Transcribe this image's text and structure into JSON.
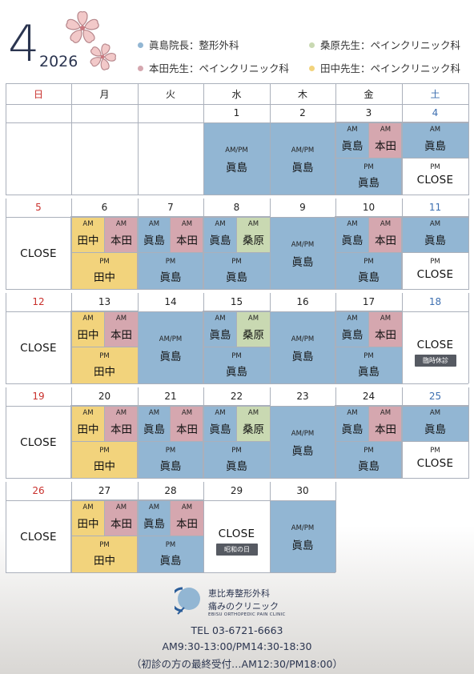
{
  "header": {
    "month": "4",
    "year": "2026",
    "legend": [
      {
        "label": "眞島院長：整形外科",
        "color": "#92b6d3"
      },
      {
        "label": "本田先生：ペインクリニック科",
        "color": "#d5a7af"
      },
      {
        "label": "桑原先生：ペインクリニック科",
        "color": "#c9d9b2"
      },
      {
        "label": "田中先生：ペインクリニック科",
        "color": "#f2d37c"
      }
    ]
  },
  "weekdays": [
    "日",
    "月",
    "火",
    "水",
    "木",
    "金",
    "土"
  ],
  "labels": {
    "am": "AM",
    "pm": "PM",
    "ampm": "AM/PM",
    "close": "CLOSE",
    "majima": "眞島",
    "honda": "本田",
    "kuwahara": "桑原",
    "tanaka": "田中",
    "special_closure": "臨時休診",
    "showa_day": "昭和の日"
  },
  "weeks": [
    {
      "days": [
        "",
        "",
        "",
        "1",
        "2",
        "3",
        "4"
      ]
    },
    {
      "days": [
        "5",
        "6",
        "7",
        "8",
        "9",
        "10",
        "11"
      ]
    },
    {
      "days": [
        "12",
        "13",
        "14",
        "15",
        "16",
        "17",
        "18"
      ]
    },
    {
      "days": [
        "19",
        "20",
        "21",
        "22",
        "23",
        "24",
        "25"
      ]
    },
    {
      "days": [
        "26",
        "27",
        "28",
        "29",
        "30",
        "",
        ""
      ]
    }
  ],
  "footer": {
    "clinic_name": "恵比寿整形外科",
    "clinic_sub": "痛みのクリニック",
    "clinic_en": "EBISU ORTHOPEDIC PAIN CLINIC",
    "tel": "TEL 03-6721-6663",
    "hours": "AM9:30-13:00/PM14:30-18:30",
    "note": "（初診の方の最終受付…AM12:30/PM18:00）"
  }
}
